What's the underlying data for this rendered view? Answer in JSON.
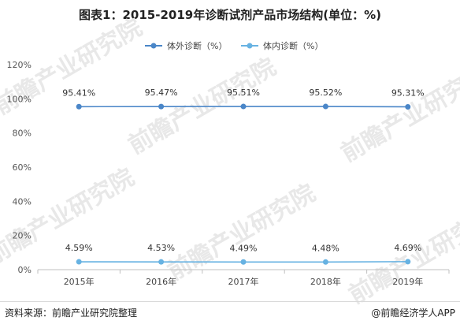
{
  "chart_data": {
    "type": "line",
    "title": "图表1：2015-2019年诊断试剂产品市场结构(单位：%)",
    "categories": [
      "2015年",
      "2016年",
      "2017年",
      "2018年",
      "2019年"
    ],
    "series": [
      {
        "name": "体外诊断（%）",
        "values": [
          95.41,
          95.47,
          95.51,
          95.52,
          95.31
        ],
        "labels": [
          "95.41%",
          "95.47%",
          "95.51%",
          "95.52%",
          "95.31%"
        ],
        "color": "#4a86c8"
      },
      {
        "name": "体内诊断（%）",
        "values": [
          4.59,
          4.53,
          4.49,
          4.48,
          4.69
        ],
        "labels": [
          "4.59%",
          "4.53%",
          "4.49%",
          "4.48%",
          "4.69%"
        ],
        "color": "#67b2e2"
      }
    ],
    "ylim": [
      0,
      120
    ],
    "yticks": [
      "0%",
      "20%",
      "40%",
      "60%",
      "80%",
      "100%",
      "120%"
    ],
    "legend": "top-center",
    "grid": false
  },
  "footer": {
    "source": "资料来源：前瞻产业研究院整理",
    "credit": "@前瞻经济学人APP"
  },
  "watermark": "前瞻产业研究院"
}
